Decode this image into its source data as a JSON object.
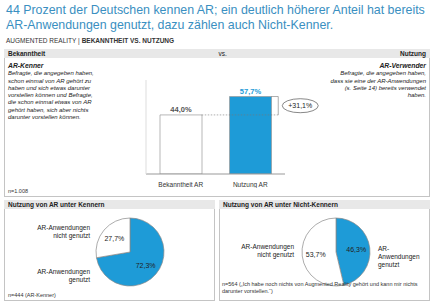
{
  "title": "44 Prozent der Deutschen kennen AR; ein deutlich höherer Anteil hat bereits AR-Anwendungen genutzt, dazu zählen auch Nicht-Kenner.",
  "subtitle_left": "AUGMENTED REALITY |",
  "subtitle_right": "BEKANNTHEIT VS. NUTZUNG",
  "chart_data": [
    {
      "type": "bar",
      "header": {
        "left": "Bekanntheit",
        "center": "vs.",
        "right": "Nutzung"
      },
      "left_note": {
        "heading": "AR-Kenner",
        "text": "Befragte, die angegeben haben, schon einmal von AR gehört zu haben und sich etwas darunter vorstellen können und Befragte, die schon einmal etwas von AR gehört haben, sich aber nichts darunter vorstellen können."
      },
      "right_note": {
        "heading": "AR-Verwender",
        "text": "Befragte, die angegeben haben, dass sie eine der AR-Anwendungen (s. Seite 14) bereits verwendet haben."
      },
      "sample": "n=1.008",
      "categories": [
        "Bekanntheit AR",
        "Nutzung AR"
      ],
      "values": [
        44.0,
        57.7
      ],
      "value_labels": [
        "44,0%",
        "57,7%"
      ],
      "colors": [
        "#ffffff",
        "#1e9bd7"
      ],
      "data_labels": true,
      "ylim": [
        0,
        70
      ],
      "tick_labels": "x",
      "annotation": "+31,1%"
    },
    {
      "type": "pie",
      "title": "Nutzung von AR unter Kennern",
      "categories": [
        "AR-Anwendungen genutzt",
        "AR-Anwendungen nicht genutzt"
      ],
      "values": [
        72.3,
        27.7
      ],
      "value_labels": [
        "72,3%",
        "27,7%"
      ],
      "colors": [
        "#1e9bd7",
        "#ffffff"
      ],
      "data_labels": true,
      "sample": "n=444 (AR-Kenner)"
    },
    {
      "type": "pie",
      "title": "Nutzung von AR unter Nicht-Kennern",
      "categories": [
        "AR-Anwendungen genutzt",
        "AR-Anwendungen nicht genutzt"
      ],
      "values": [
        46.3,
        53.7
      ],
      "value_labels": [
        "46,3%",
        "53,7%"
      ],
      "colors": [
        "#1e9bd7",
        "#ffffff"
      ],
      "data_labels": true,
      "sample": "n=564 („Ich habe noch nichts von Augmented Reality gehört und kann mir nichts darunter vorstellen.“)"
    }
  ]
}
